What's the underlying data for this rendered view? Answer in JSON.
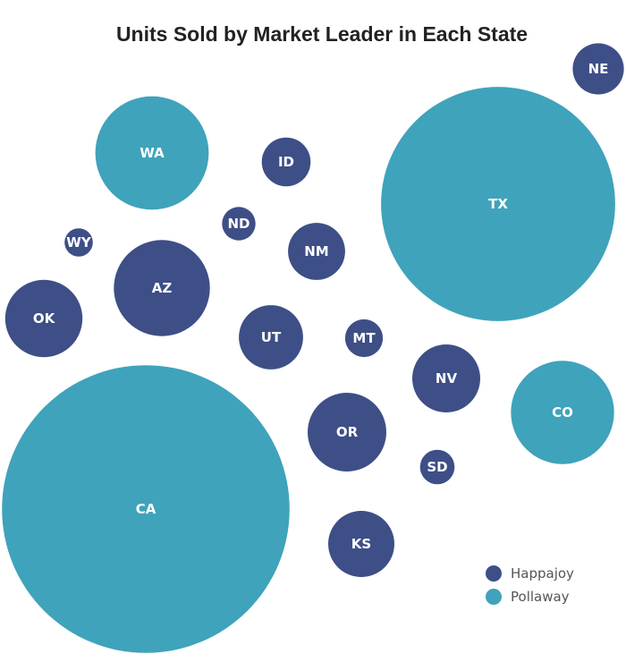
{
  "chart_data": {
    "type": "bubble",
    "title": "Units Sold by Market Leader in Each State",
    "legend_position": "bottom-right",
    "series": [
      {
        "name": "Happajoy",
        "color": "#3d4f86"
      },
      {
        "name": "Pollaway",
        "color": "#3fa3bb"
      }
    ],
    "bubbles": [
      {
        "label": "NE",
        "leader": "Happajoy",
        "units": 3300
      },
      {
        "label": "WA",
        "leader": "Pollaway",
        "units": 16200
      },
      {
        "label": "ID",
        "leader": "Happajoy",
        "units": 3000
      },
      {
        "label": "TX",
        "leader": "Pollaway",
        "units": 69000
      },
      {
        "label": "ND",
        "leader": "Happajoy",
        "units": 1400
      },
      {
        "label": "WY",
        "leader": "Happajoy",
        "units": 1000
      },
      {
        "label": "NM",
        "leader": "Happajoy",
        "units": 4100
      },
      {
        "label": "AZ",
        "leader": "Happajoy",
        "units": 11600
      },
      {
        "label": "OK",
        "leader": "Happajoy",
        "units": 7500
      },
      {
        "label": "UT",
        "leader": "Happajoy",
        "units": 5200
      },
      {
        "label": "MT",
        "leader": "Happajoy",
        "units": 1800
      },
      {
        "label": "NV",
        "leader": "Happajoy",
        "units": 5800
      },
      {
        "label": "CO",
        "leader": "Pollaway",
        "units": 13400
      },
      {
        "label": "OR",
        "leader": "Happajoy",
        "units": 7800
      },
      {
        "label": "SD",
        "leader": "Happajoy",
        "units": 1500
      },
      {
        "label": "CA",
        "leader": "Pollaway",
        "units": 104000
      },
      {
        "label": "KS",
        "leader": "Happajoy",
        "units": 5500
      }
    ]
  }
}
